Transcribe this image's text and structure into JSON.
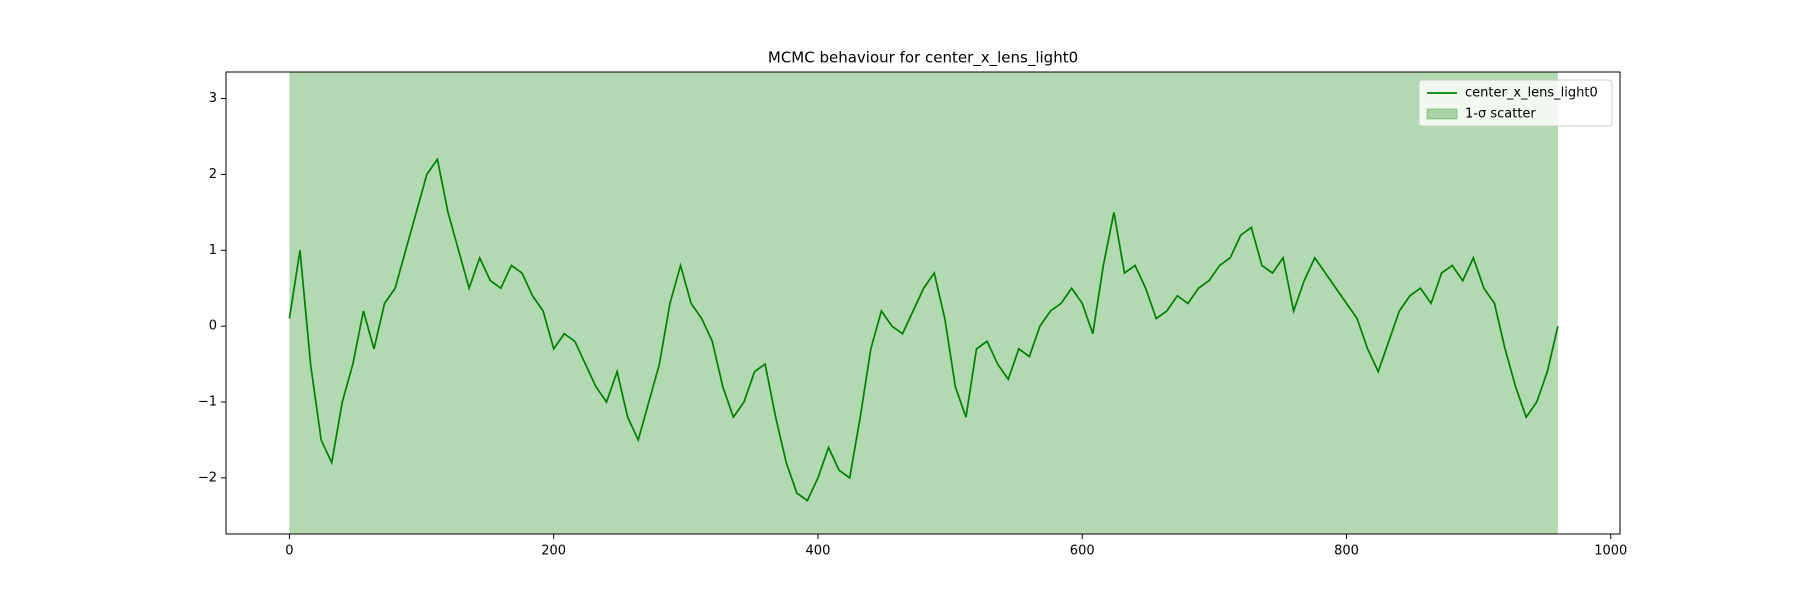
{
  "chart_data": {
    "type": "line",
    "title": "MCMC behaviour for center_x_lens_light0",
    "x": [
      0,
      8,
      16,
      24,
      32,
      40,
      48,
      56,
      64,
      72,
      80,
      88,
      96,
      104,
      112,
      120,
      128,
      136,
      144,
      152,
      160,
      168,
      176,
      184,
      192,
      200,
      208,
      216,
      224,
      232,
      240,
      248,
      256,
      264,
      272,
      280,
      288,
      296,
      304,
      312,
      320,
      328,
      336,
      344,
      352,
      360,
      368,
      376,
      384,
      392,
      400,
      408,
      416,
      424,
      432,
      440,
      448,
      456,
      464,
      472,
      480,
      488,
      496,
      504,
      512,
      520,
      528,
      536,
      544,
      552,
      560,
      568,
      576,
      584,
      592,
      600,
      608,
      616,
      624,
      632,
      640,
      648,
      656,
      664,
      672,
      680,
      688,
      696,
      704,
      712,
      720,
      728,
      736,
      744,
      752,
      760,
      768,
      776,
      784,
      792,
      800,
      808,
      816,
      824,
      832,
      840,
      848,
      856,
      864,
      872,
      880,
      888,
      896,
      904,
      912,
      920,
      928,
      936,
      944,
      952,
      960
    ],
    "series": [
      {
        "name": "center_x_lens_light0",
        "color": "#008000",
        "values": [
          0.1,
          1.0,
          -0.5,
          -1.5,
          -1.8,
          -1.0,
          -0.5,
          0.2,
          -0.3,
          0.3,
          0.5,
          1.0,
          1.5,
          2.0,
          2.2,
          1.5,
          1.0,
          0.5,
          0.9,
          0.6,
          0.5,
          0.8,
          0.7,
          0.4,
          0.2,
          -0.3,
          -0.1,
          -0.2,
          -0.5,
          -0.8,
          -1.0,
          -0.6,
          -1.2,
          -1.5,
          -1.0,
          -0.5,
          0.3,
          0.8,
          0.3,
          0.1,
          -0.2,
          -0.8,
          -1.2,
          -1.0,
          -0.6,
          -0.5,
          -1.2,
          -1.8,
          -2.2,
          -2.3,
          -2.0,
          -1.6,
          -1.9,
          -2.0,
          -1.2,
          -0.3,
          0.2,
          0.0,
          -0.1,
          0.2,
          0.5,
          0.7,
          0.1,
          -0.8,
          -1.2,
          -0.3,
          -0.2,
          -0.5,
          -0.7,
          -0.3,
          -0.4,
          0.0,
          0.2,
          0.3,
          0.5,
          0.3,
          -0.1,
          0.8,
          1.5,
          0.7,
          0.8,
          0.5,
          0.1,
          0.2,
          0.4,
          0.3,
          0.5,
          0.6,
          0.8,
          0.9,
          1.2,
          1.3,
          0.8,
          0.7,
          0.9,
          0.2,
          0.6,
          0.9,
          0.7,
          0.5,
          0.3,
          0.1,
          -0.3,
          -0.6,
          -0.2,
          0.2,
          0.4,
          0.5,
          0.3,
          0.7,
          0.8,
          0.6,
          0.9,
          0.5,
          0.3,
          -0.3,
          -0.8,
          -1.2,
          -1.0,
          -0.6,
          0.0
        ]
      }
    ],
    "band": {
      "name": "1-σ scatter",
      "color": "#008000",
      "xlim": [
        0,
        960
      ]
    },
    "xlim": [
      -48,
      1007
    ],
    "ylim": [
      -2.74,
      3.35
    ],
    "xticks": [
      0,
      200,
      400,
      600,
      800,
      1000
    ],
    "yticks": [
      {
        "value": -2,
        "label": "−2"
      },
      {
        "value": -1,
        "label": "−1"
      },
      0,
      1,
      2,
      3
    ],
    "legend": "upper right"
  }
}
